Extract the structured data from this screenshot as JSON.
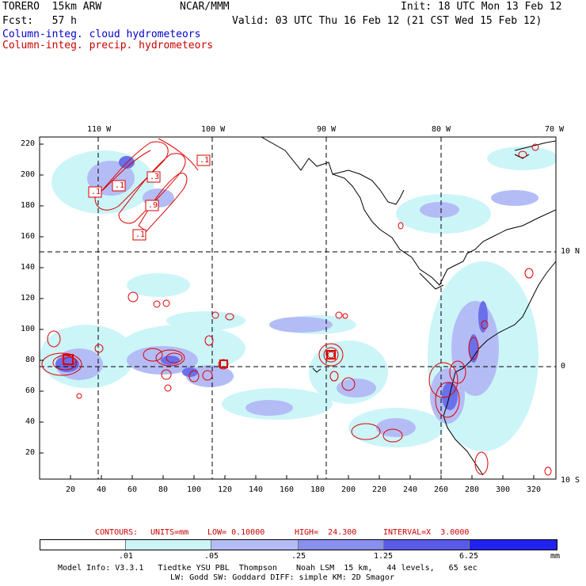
{
  "header": {
    "model": "TORERO  15km ARW",
    "org": "NCAR/MMM",
    "init": "Init: 18 UTC Mon 13 Feb 12",
    "fcst": "Fcst:   57 h",
    "valid": "Valid: 03 UTC Thu 16 Feb 12 (21 CST Wed 15 Feb 12)",
    "field1": "Column-integ. cloud hydrometeors",
    "field2": "Column-integ. precip. hydrometeors"
  },
  "axes": {
    "lon_top": [
      "110 W",
      "100 W",
      "90 W",
      "80 W",
      "70 W"
    ],
    "lat_right": [
      "10 N",
      "0",
      "10 S"
    ],
    "y_left": [
      "220",
      "200",
      "180",
      "160",
      "140",
      "120",
      "100",
      "80",
      "60",
      "40",
      "20"
    ],
    "x_bottom": [
      "20",
      "40",
      "60",
      "80",
      "100",
      "120",
      "140",
      "160",
      "180",
      "200",
      "220",
      "240",
      "260",
      "280",
      "300",
      "320"
    ]
  },
  "contour_labels": [
    ".1",
    ".1",
    ".3",
    ".9",
    ".1",
    ".1"
  ],
  "contours_info": {
    "prefix": "CONTOURS:",
    "units": "UNITS=mm",
    "low": "LOW= 0.10000",
    "high": "HIGH=  24.300",
    "interval": "INTERVAL=X  3.0000"
  },
  "colorbar": {
    "ticks": [
      ".01",
      ".05",
      ".25",
      "1.25",
      "6.25"
    ],
    "unit": "mm",
    "colors": [
      "#ffffff",
      "#ccf5f8",
      "#b4bcf6",
      "#8a90ee",
      "#5a5ae8",
      "#2222ee"
    ]
  },
  "model_info": {
    "line1": "Model Info: V3.3.1   Tiedtke YSU PBL  Thompson    Noah LSM  15 km,   44 levels,   65 sec",
    "line2": "LW: Godd SW: Goddard DIFF: simple KM: 2D Smagor"
  }
}
